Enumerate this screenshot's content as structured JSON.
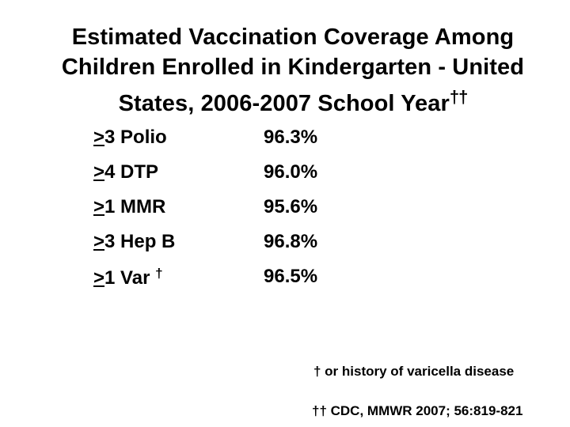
{
  "title": {
    "line1": "Estimated Vaccination Coverage Among",
    "line2": "Children Enrolled in Kindergarten - United",
    "line3": "States, 2006-2007 School Year",
    "line3_mark": "††"
  },
  "rows": [
    {
      "ge": ">",
      "label": "3 Polio",
      "mark": "",
      "value": "96.3%"
    },
    {
      "ge": ">",
      "label": "4 DTP",
      "mark": "",
      "value": "96.0%"
    },
    {
      "ge": ">",
      "label": "1 MMR",
      "mark": "",
      "value": "95.6%"
    },
    {
      "ge": ">",
      "label": "3 Hep B",
      "mark": "",
      "value": "96.8%"
    },
    {
      "ge": ">",
      "label": "1 Var ",
      "mark": "†",
      "value": "96.5%"
    }
  ],
  "footnotes": [
    "† or history of varicella disease",
    "†† CDC, MMWR 2007; 56:819-821"
  ]
}
